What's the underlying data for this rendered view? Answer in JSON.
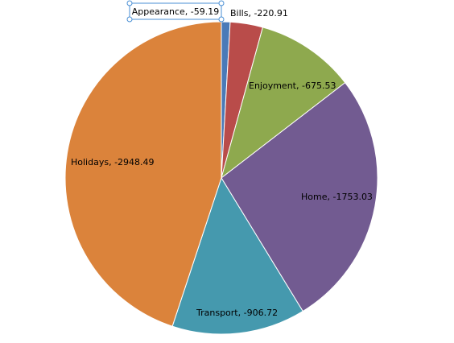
{
  "chart_data": {
    "type": "pie",
    "slices": [
      {
        "label": "Appearance",
        "text": "Appearance, -59.19",
        "value": -59.19,
        "color": "#4a7ab8"
      },
      {
        "label": "Bills",
        "text": "Bills, -220.91",
        "value": -220.91,
        "color": "#b94c4a"
      },
      {
        "label": "Enjoyment",
        "text": "Enjoyment, -675.53",
        "value": -675.53,
        "color": "#8ea94e"
      },
      {
        "label": "Home",
        "text": "Home, -1753.03",
        "value": -1753.03,
        "color": "#725b91"
      },
      {
        "label": "Transport",
        "text": "Transport, -906.72",
        "value": -906.72,
        "color": "#4599ae"
      },
      {
        "label": "Holidays",
        "text": "Holidays, -2948.49",
        "value": -2948.49,
        "color": "#db833b"
      }
    ],
    "selected_label": "Appearance"
  }
}
